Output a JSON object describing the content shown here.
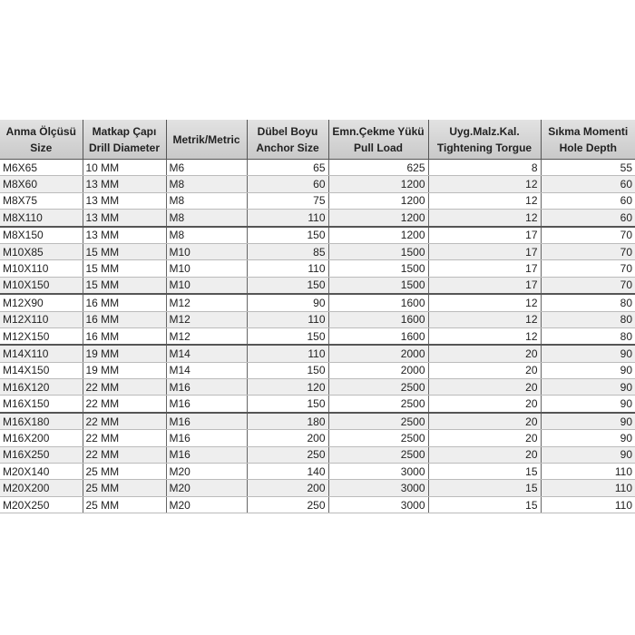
{
  "headers": [
    [
      "Anma Ölçüsü",
      "Size"
    ],
    [
      "Matkap Çapı",
      "Drill Diameter"
    ],
    [
      "Metrik/Metric",
      ""
    ],
    [
      "Dübel Boyu",
      "Anchor Size"
    ],
    [
      "Emn.Çekme Yükü",
      "Pull Load"
    ],
    [
      "Uyg.Malz.Kal.",
      "Tightening Torgue"
    ],
    [
      "Sıkma Momenti",
      "Hole Depth"
    ]
  ],
  "rows": [
    [
      "M6X65",
      "10 MM",
      "M6",
      "65",
      "625",
      "8",
      "55"
    ],
    [
      "M8X60",
      "13 MM",
      "M8",
      "60",
      "1200",
      "12",
      "60"
    ],
    [
      "M8X75",
      "13 MM",
      "M8",
      "75",
      "1200",
      "12",
      "60"
    ],
    [
      "M8X110",
      "13 MM",
      "M8",
      "110",
      "1200",
      "12",
      "60"
    ],
    [
      "M8X150",
      "13 MM",
      "M8",
      "150",
      "1200",
      "17",
      "70"
    ],
    [
      "M10X85",
      "15 MM",
      "M10",
      "85",
      "1500",
      "17",
      "70"
    ],
    [
      "M10X110",
      "15 MM",
      "M10",
      "110",
      "1500",
      "17",
      "70"
    ],
    [
      "M10X150",
      "15 MM",
      "M10",
      "150",
      "1500",
      "17",
      "70"
    ],
    [
      "M12X90",
      "16 MM",
      "M12",
      "90",
      "1600",
      "12",
      "80"
    ],
    [
      "M12X110",
      "16 MM",
      "M12",
      "110",
      "1600",
      "12",
      "80"
    ],
    [
      "M12X150",
      "16 MM",
      "M12",
      "150",
      "1600",
      "12",
      "80"
    ],
    [
      "M14X110",
      "19 MM",
      "M14",
      "110",
      "2000",
      "20",
      "90"
    ],
    [
      "M14X150",
      "19 MM",
      "M14",
      "150",
      "2000",
      "20",
      "90"
    ],
    [
      "M16X120",
      "22 MM",
      "M16",
      "120",
      "2500",
      "20",
      "90"
    ],
    [
      "M16X150",
      "22 MM",
      "M16",
      "150",
      "2500",
      "20",
      "90"
    ],
    [
      "M16X180",
      "22 MM",
      "M16",
      "180",
      "2500",
      "20",
      "90"
    ],
    [
      "M16X200",
      "22 MM",
      "M16",
      "200",
      "2500",
      "20",
      "90"
    ],
    [
      "M16X250",
      "22 MM",
      "M16",
      "250",
      "2500",
      "20",
      "90"
    ],
    [
      "M20X140",
      "25 MM",
      "M20",
      "140",
      "3000",
      "15",
      "110"
    ],
    [
      "M20X200",
      "25 MM",
      "M20",
      "200",
      "3000",
      "15",
      "110"
    ],
    [
      "M20X250",
      "25 MM",
      "M20",
      "250",
      "3000",
      "15",
      "110"
    ]
  ]
}
